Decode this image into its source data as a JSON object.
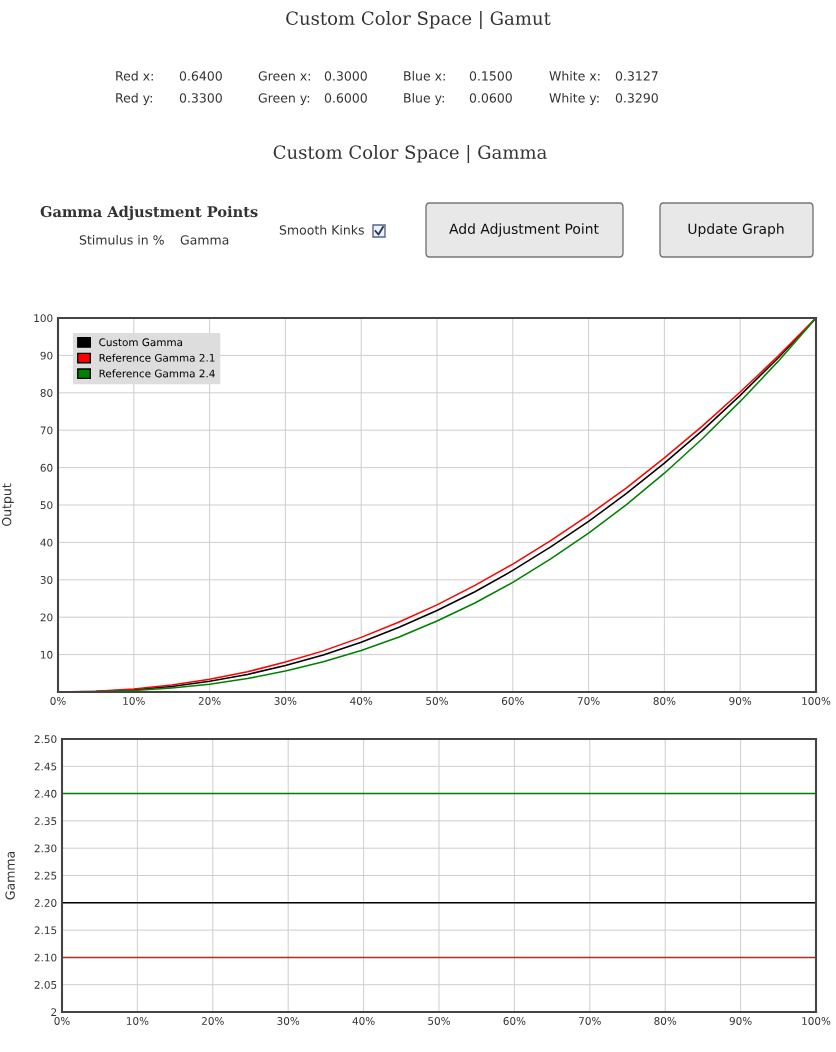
{
  "chart_data": [
    {
      "type": "line",
      "ylabel": "Output",
      "legend": "top left",
      "grid": true,
      "marker": "none",
      "line_style": "solid",
      "annotations": [
        "Custom Color Space | Gamut",
        "Red x:",
        "0.6400",
        "Green x:",
        "0.3000",
        "Blue x:",
        "0.1500",
        "White x:",
        "0.3127",
        "Red y:",
        "0.3300",
        "Green y:",
        "0.6000",
        "Blue y:",
        "0.0600",
        "White y:",
        "0.3290",
        "Custom Color Space | Gamma",
        "Gamma Adjustment Points",
        "Stimulus in %",
        "Gamma",
        "Smooth Kinks",
        "Add Adjustment Point",
        "Update Graph"
      ],
      "x": [
        0,
        5,
        10,
        15,
        20,
        25,
        30,
        35,
        40,
        45,
        50,
        55,
        60,
        65,
        70,
        75,
        80,
        85,
        90,
        95,
        100
      ],
      "xlim": [
        0,
        100
      ],
      "xticks": [
        {
          "value": 0,
          "label": "0%"
        },
        {
          "value": 10,
          "label": "10%"
        },
        {
          "value": 20,
          "label": "20%"
        },
        {
          "value": 30,
          "label": "30%"
        },
        {
          "value": 40,
          "label": "40%"
        },
        {
          "value": 50,
          "label": "50%"
        },
        {
          "value": 60,
          "label": "60%"
        },
        {
          "value": 70,
          "label": "70%"
        },
        {
          "value": 80,
          "label": "80%"
        },
        {
          "value": 90,
          "label": "90%"
        },
        {
          "value": 100,
          "label": "100%"
        }
      ],
      "ylim": [
        0,
        100
      ],
      "yticks": [
        10,
        20,
        30,
        40,
        50,
        60,
        70,
        80,
        90,
        100
      ],
      "series": [
        {
          "name": "Custom Gamma",
          "color": "#000000",
          "values": [
            0,
            0.1,
            0.6,
            1.5,
            2.9,
            4.7,
            7.1,
            9.9,
            13.3,
            17.3,
            21.8,
            26.8,
            32.5,
            38.8,
            45.6,
            53.1,
            61.2,
            69.9,
            79.3,
            89.3,
            100
          ]
        },
        {
          "name": "Reference Gamma 2.1",
          "color": "#ff0000",
          "values": [
            0,
            0.2,
            0.8,
            1.9,
            3.4,
            5.4,
            8.0,
            11.0,
            14.6,
            18.7,
            23.3,
            28.5,
            34.2,
            40.5,
            47.3,
            54.6,
            62.6,
            71.1,
            80.2,
            89.8,
            100
          ]
        },
        {
          "name": "Reference Gamma 2.4",
          "color": "#008000",
          "values": [
            0,
            0.1,
            0.4,
            1.1,
            2.1,
            3.6,
            5.6,
            8.1,
            11.1,
            14.7,
            19.0,
            23.8,
            29.3,
            35.6,
            42.5,
            50.1,
            58.5,
            67.7,
            77.7,
            88.4,
            100
          ]
        }
      ]
    },
    {
      "type": "line",
      "ylabel": "Gamma",
      "grid": true,
      "marker": "none",
      "line_style": "solid",
      "x": [
        0,
        100
      ],
      "xlim": [
        0,
        100
      ],
      "xticks": [
        {
          "value": 0,
          "label": "0%"
        },
        {
          "value": 10,
          "label": "10%"
        },
        {
          "value": 20,
          "label": "20%"
        },
        {
          "value": 30,
          "label": "30%"
        },
        {
          "value": 40,
          "label": "40%"
        },
        {
          "value": 50,
          "label": "50%"
        },
        {
          "value": 60,
          "label": "60%"
        },
        {
          "value": 70,
          "label": "70%"
        },
        {
          "value": 80,
          "label": "80%"
        },
        {
          "value": 90,
          "label": "90%"
        },
        {
          "value": 100,
          "label": "100%"
        }
      ],
      "ylim": [
        2,
        2.5
      ],
      "yticks": [
        2,
        2.05,
        {
          "value": 2.1,
          "label": "2.10"
        },
        2.15,
        {
          "value": 2.2,
          "label": "2.20"
        },
        2.25,
        {
          "value": 2.3,
          "label": "2.30"
        },
        2.35,
        {
          "value": 2.4,
          "label": "2.40"
        },
        2.45,
        {
          "value": 2.5,
          "label": "2.50"
        }
      ],
      "series": [
        {
          "color": "#008000",
          "values": [
            2.4,
            2.4
          ]
        },
        {
          "color": "#000000",
          "values": [
            2.2,
            2.2
          ]
        },
        {
          "color": "#b03020",
          "values": [
            2.1,
            2.1
          ]
        }
      ]
    }
  ]
}
